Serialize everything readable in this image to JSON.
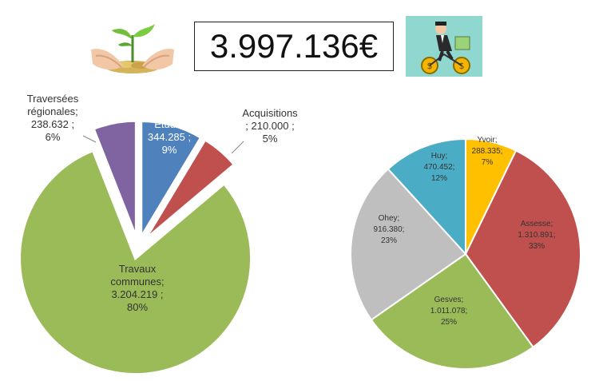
{
  "header": {
    "total": "3.997.136€",
    "left_image": "hands-plant-coins-icon",
    "right_image": "cyclist-money-icon"
  },
  "chart_data": [
    {
      "type": "pie",
      "title": "",
      "exploded": true,
      "slices": [
        {
          "name": "Etude",
          "value": 344285,
          "label_lines": [
            "Etude;",
            "344.285 ;",
            "9%"
          ],
          "color": "#4f81bd"
        },
        {
          "name": "Acquisitions",
          "value": 210000,
          "label_lines": [
            "Acquisitions",
            "; 210.000 ;",
            "5%"
          ],
          "color": "#c0504d"
        },
        {
          "name": "Travaux communes",
          "value": 3204219,
          "label_lines": [
            "Travaux",
            "communes;",
            "3.204.219 ;",
            "80%"
          ],
          "color": "#9bbb59"
        },
        {
          "name": "Traversées régionales",
          "value": 238632,
          "label_lines": [
            "Traversées",
            "régionales;",
            "238.632 ;",
            "6%"
          ],
          "color": "#8064a2"
        }
      ]
    },
    {
      "type": "pie",
      "title": "",
      "slices": [
        {
          "name": "Yvoir",
          "value": 288335,
          "label_lines": [
            "Yvoir;",
            "288.335;",
            "7%"
          ],
          "color": "#ffc000"
        },
        {
          "name": "Assesse",
          "value": 1310891,
          "label_lines": [
            "Assesse;",
            "1.310.891;",
            "33%"
          ],
          "color": "#c0504d"
        },
        {
          "name": "Gesves",
          "value": 1011078,
          "label_lines": [
            "Gesves;",
            "1.011.078;",
            "25%"
          ],
          "color": "#9bbb59"
        },
        {
          "name": "Ohey",
          "value": 916380,
          "label_lines": [
            "Ohey;",
            "916.380;",
            "23%"
          ],
          "color": "#bfbfbf"
        },
        {
          "name": "Huy",
          "value": 470452,
          "label_lines": [
            "Huy;",
            "470.452;",
            "12%"
          ],
          "color": "#4bacc6"
        }
      ]
    }
  ]
}
